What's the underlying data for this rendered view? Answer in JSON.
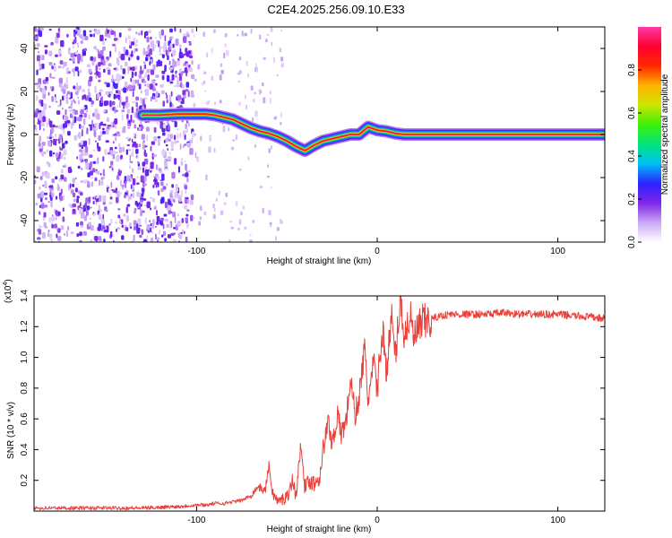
{
  "title": "C2E4.2025.256.09.10.E33",
  "chart_data": [
    {
      "type": "heatmap",
      "name": "spectrogram",
      "xlabel": "Height of straight line (km)",
      "ylabel": "Frequency (Hz)",
      "xlim": [
        -190,
        126
      ],
      "ylim": [
        -50,
        50
      ],
      "x_ticks": [
        -100,
        0,
        100
      ],
      "x_tick_labels": [
        "-100",
        "0",
        "100"
      ],
      "y_ticks": [
        -40,
        -20,
        0,
        20,
        40
      ],
      "y_tick_labels": [
        "-40",
        "-20",
        "0",
        "20",
        "40"
      ],
      "noise_region_x": [
        -190,
        -103
      ],
      "ridge": {
        "x": [
          -130,
          -120,
          -110,
          -100,
          -95,
          -90,
          -85,
          -80,
          -75,
          -70,
          -65,
          -60,
          -55,
          -50,
          -45,
          -40,
          -35,
          -30,
          -25,
          -20,
          -15,
          -10,
          -5,
          0,
          5,
          10,
          15,
          20,
          30,
          50,
          80,
          126
        ],
        "freq": [
          9,
          9,
          9.5,
          9.5,
          9.5,
          9,
          8,
          7,
          5,
          3,
          1.5,
          0.5,
          -1,
          -3,
          -5.5,
          -7.5,
          -5,
          -3,
          -2,
          -1,
          0,
          0,
          3.5,
          2,
          1.5,
          0.5,
          0,
          0,
          0,
          0,
          0,
          0
        ],
        "amplitude": [
          0.45,
          0.45,
          0.5,
          0.55,
          0.65,
          0.7,
          0.75,
          0.8,
          0.82,
          0.85,
          0.87,
          0.88,
          0.9,
          0.9,
          0.9,
          0.92,
          0.9,
          0.92,
          0.93,
          0.94,
          0.95,
          0.95,
          0.95,
          0.95,
          0.96,
          0.97,
          0.97,
          0.98,
          0.98,
          0.98,
          0.98,
          0.98
        ]
      },
      "colorbar": {
        "label": "Normalized spectral amplitude",
        "range": [
          0,
          1
        ],
        "ticks": [
          0.0,
          0.2,
          0.4,
          0.6,
          0.8
        ],
        "tick_labels": [
          "0.0",
          "0.2",
          "0.4",
          "0.6",
          "0.8"
        ],
        "colors": [
          "#ffffff",
          "#c9a8f5",
          "#7f26e6",
          "#2a22ff",
          "#00bff5",
          "#00e57a",
          "#3cf00a",
          "#cde600",
          "#ffb300",
          "#ff2a00",
          "#ff0030",
          "#ff39a5"
        ]
      }
    },
    {
      "type": "line",
      "name": "snr",
      "xlabel": "Height of straight line (km)",
      "ylabel": "SNR (10 * v/v)",
      "scale_label": "(x10",
      "scale_exponent": "4",
      "scale_suffix": ")",
      "xlim": [
        -190,
        126
      ],
      "ylim": [
        0,
        1.4
      ],
      "x_ticks": [
        -100,
        0,
        100
      ],
      "x_tick_labels": [
        "-100",
        "0",
        "100"
      ],
      "y_ticks": [
        0.2,
        0.4,
        0.6,
        0.8,
        1.0,
        1.2,
        1.4
      ],
      "y_tick_labels": [
        "0.2",
        "0.4",
        "0.6",
        "0.8",
        "1.0",
        "1.2",
        "1.4"
      ],
      "color": "#e8403a",
      "series": [
        {
          "name": "SNR",
          "x": [
            -190,
            -170,
            -150,
            -130,
            -110,
            -100,
            -95,
            -90,
            -85,
            -80,
            -75,
            -70,
            -66,
            -62,
            -60,
            -58,
            -55,
            -52,
            -50,
            -47,
            -45,
            -42,
            -40,
            -37,
            -35,
            -32,
            -30,
            -27,
            -25,
            -22,
            -20,
            -17,
            -15,
            -12,
            -10,
            -7,
            -5,
            -2,
            0,
            3,
            5,
            8,
            10,
            13,
            15,
            18,
            20,
            23,
            25,
            28,
            30,
            35,
            40,
            50,
            60,
            70,
            80,
            90,
            100,
            110,
            120,
            126
          ],
          "y": [
            0.02,
            0.02,
            0.02,
            0.02,
            0.03,
            0.04,
            0.04,
            0.05,
            0.05,
            0.06,
            0.07,
            0.1,
            0.16,
            0.13,
            0.3,
            0.12,
            0.06,
            0.08,
            0.09,
            0.2,
            0.1,
            0.45,
            0.15,
            0.2,
            0.18,
            0.22,
            0.4,
            0.58,
            0.44,
            0.62,
            0.5,
            0.6,
            0.86,
            0.62,
            0.75,
            1.05,
            0.72,
            0.95,
            0.8,
            1.18,
            0.92,
            1.25,
            1.0,
            1.4,
            1.12,
            1.28,
            1.12,
            1.18,
            1.22,
            1.23,
            1.25,
            1.27,
            1.28,
            1.28,
            1.28,
            1.29,
            1.28,
            1.28,
            1.28,
            1.27,
            1.26,
            1.25
          ]
        }
      ]
    }
  ]
}
